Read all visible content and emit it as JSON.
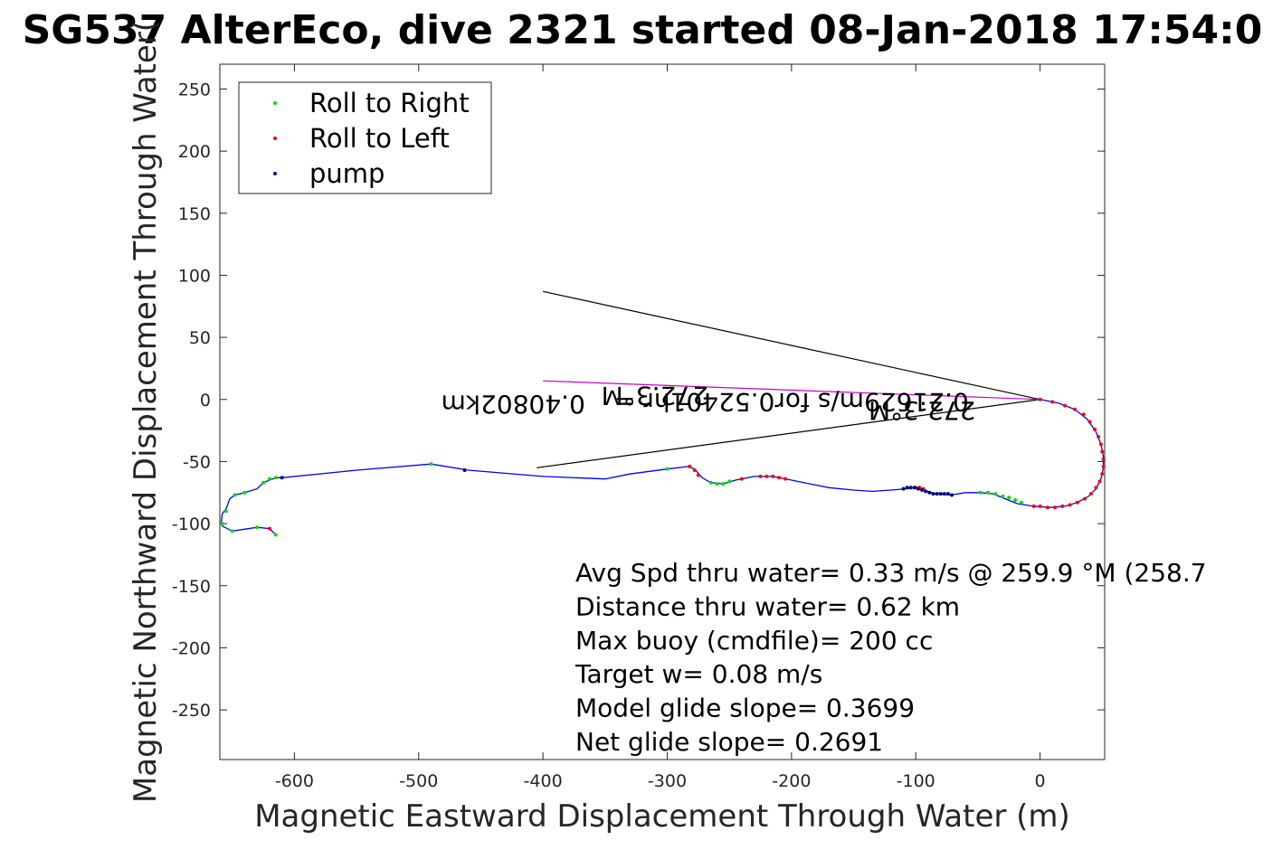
{
  "chart_data": {
    "type": "line",
    "title": "SG537 AlterEco, dive 2321 started 08-Jan-2018 17:54:0",
    "xlabel": "Magnetic Eastward Displacement Through Water (m)",
    "ylabel": "Magnetic Northward Displacement Through Water(",
    "xlim": [
      -660,
      52
    ],
    "ylim": [
      -290,
      270
    ],
    "xticks": [
      -600,
      -500,
      -400,
      -300,
      -200,
      -100,
      0
    ],
    "yticks": [
      250,
      200,
      150,
      100,
      50,
      0,
      -50,
      -100,
      -150,
      -200,
      -250
    ],
    "grid": true,
    "legend_position": "top-left",
    "legend": [
      {
        "label": "Roll to Right",
        "color": "#00dd00"
      },
      {
        "label": "Roll to Left",
        "color": "#ff0000"
      },
      {
        "label": "pump",
        "color": "#000080"
      }
    ],
    "track_color": "#0000ff",
    "heading_color": "#cc00cc",
    "track": [
      [
        0,
        0
      ],
      [
        15,
        -3
      ],
      [
        28,
        -8
      ],
      [
        38,
        -16
      ],
      [
        45,
        -26
      ],
      [
        49,
        -36
      ],
      [
        51,
        -46
      ],
      [
        51,
        -55
      ],
      [
        49,
        -64
      ],
      [
        45,
        -72
      ],
      [
        39,
        -78
      ],
      [
        30,
        -83
      ],
      [
        20,
        -86
      ],
      [
        8,
        -87
      ],
      [
        -5,
        -86
      ],
      [
        -18,
        -84
      ],
      [
        -28,
        -80
      ],
      [
        -38,
        -76
      ],
      [
        -48,
        -75
      ],
      [
        -60,
        -75
      ],
      [
        -72,
        -77
      ],
      [
        -84,
        -76
      ],
      [
        -94,
        -73
      ],
      [
        -100,
        -71
      ],
      [
        -108,
        -72
      ],
      [
        -120,
        -73
      ],
      [
        -135,
        -74
      ],
      [
        -150,
        -73
      ],
      [
        -170,
        -71
      ],
      [
        -195,
        -66
      ],
      [
        -215,
        -62
      ],
      [
        -230,
        -62
      ],
      [
        -245,
        -65
      ],
      [
        -255,
        -68
      ],
      [
        -265,
        -67
      ],
      [
        -272,
        -63
      ],
      [
        -278,
        -56
      ],
      [
        -283,
        -54
      ],
      [
        -300,
        -56
      ],
      [
        -330,
        -60
      ],
      [
        -350,
        -64
      ],
      [
        -400,
        -62
      ],
      [
        -460,
        -57
      ],
      [
        -490,
        -52
      ],
      [
        -550,
        -57
      ],
      [
        -610,
        -63
      ],
      [
        -615,
        -63
      ],
      [
        -625,
        -67
      ],
      [
        -630,
        -72
      ],
      [
        -640,
        -75
      ],
      [
        -648,
        -77
      ],
      [
        -652,
        -80
      ],
      [
        -655,
        -88
      ],
      [
        -658,
        -92
      ],
      [
        -659,
        -100
      ],
      [
        -658,
        -102
      ],
      [
        -650,
        -106
      ],
      [
        -630,
        -103
      ],
      [
        -620,
        -104
      ],
      [
        -615,
        -109
      ]
    ],
    "roll_right": [
      [
        -650,
        -106
      ],
      [
        -630,
        -103
      ],
      [
        -615,
        -109
      ],
      [
        -625,
        -67
      ],
      [
        -620,
        -64
      ],
      [
        -615,
        -63
      ],
      [
        -640,
        -75
      ],
      [
        -648,
        -77
      ],
      [
        -490,
        -52
      ],
      [
        -300,
        -56
      ],
      [
        -260,
        -68
      ],
      [
        -255,
        -68
      ],
      [
        -250,
        -66
      ],
      [
        -265,
        -67
      ],
      [
        -48,
        -75
      ],
      [
        -42,
        -75
      ],
      [
        -36,
        -76
      ],
      [
        -30,
        -78
      ],
      [
        -25,
        -79
      ],
      [
        -20,
        -81
      ],
      [
        -15,
        -83
      ],
      [
        -658,
        -100
      ],
      [
        -655,
        -90
      ]
    ],
    "roll_left": [
      [
        0,
        0
      ],
      [
        10,
        -2
      ],
      [
        20,
        -5
      ],
      [
        28,
        -8
      ],
      [
        35,
        -12
      ],
      [
        40,
        -18
      ],
      [
        44,
        -24
      ],
      [
        47,
        -30
      ],
      [
        49,
        -36
      ],
      [
        50,
        -42
      ],
      [
        51,
        -48
      ],
      [
        51,
        -54
      ],
      [
        50,
        -60
      ],
      [
        48,
        -66
      ],
      [
        45,
        -71
      ],
      [
        41,
        -76
      ],
      [
        36,
        -80
      ],
      [
        30,
        -83
      ],
      [
        24,
        -85
      ],
      [
        18,
        -86
      ],
      [
        12,
        -87
      ],
      [
        6,
        -87
      ],
      [
        0,
        -86
      ],
      [
        -5,
        -86
      ],
      [
        -620,
        -104
      ],
      [
        -282,
        -54
      ],
      [
        -278,
        -57
      ],
      [
        -275,
        -61
      ],
      [
        -240,
        -64
      ],
      [
        -225,
        -62
      ],
      [
        -220,
        -62
      ],
      [
        -215,
        -62
      ],
      [
        -210,
        -63
      ],
      [
        -205,
        -64
      ],
      [
        -100,
        -71
      ],
      [
        -97,
        -71
      ],
      [
        -94,
        -72
      ]
    ],
    "pump": [
      [
        -610,
        -63
      ],
      [
        -463,
        -57
      ],
      [
        -110,
        -72
      ],
      [
        -107,
        -71
      ],
      [
        -104,
        -71
      ],
      [
        -101,
        -71
      ],
      [
        -98,
        -72
      ],
      [
        -95,
        -73
      ],
      [
        -92,
        -74
      ],
      [
        -89,
        -75
      ],
      [
        -86,
        -76
      ],
      [
        -83,
        -76
      ],
      [
        -80,
        -76
      ],
      [
        -77,
        -76
      ],
      [
        -74,
        -76
      ],
      [
        -71,
        -77
      ]
    ],
    "current_lines": [
      {
        "from": [
          0,
          0
        ],
        "to": [
          -400,
          87
        ]
      },
      {
        "from": [
          0,
          0
        ],
        "to": [
          -405,
          -55
        ]
      }
    ],
    "heading_line": {
      "from": [
        0,
        0
      ],
      "to": [
        -400,
        15
      ]
    },
    "annotations": [
      {
        "text": "272.3°M",
        "at": [
          -310,
          10
        ],
        "rotated": true
      },
      {
        "text": "0.40802km",
        "at": [
          -424,
          3
        ],
        "rotated": true
      },
      {
        "text": "0.21629m/s for0.52401hr =",
        "at": [
          -200,
          5
        ],
        "rotated": true
      },
      {
        "text": "272.3°M",
        "at": [
          -95,
          -2
        ],
        "rotated": true
      }
    ],
    "stats": [
      "Avg Spd thru water=  0.33 m/s @ 259.9 °M (258.7",
      "Distance thru water=  0.62 km",
      "Max buoy (cmdfile)= 200 cc",
      "Target w= 0.08 m/s",
      "Model glide slope= 0.3699",
      "Net glide slope= 0.2691"
    ]
  }
}
